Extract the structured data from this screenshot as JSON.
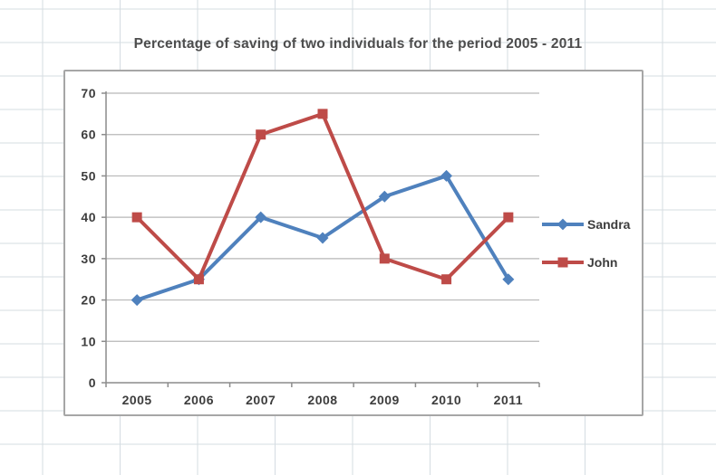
{
  "canvas": {
    "background_color": "#ffffff",
    "cell_grid_color": "#d5dce2",
    "chart_border_color": "#a6a6a6"
  },
  "chart_data": {
    "type": "line",
    "title": "Percentage of saving of two individuals for the period 2005 - 2011",
    "categories": [
      "2005",
      "2006",
      "2007",
      "2008",
      "2009",
      "2010",
      "2011"
    ],
    "series": [
      {
        "name": "Sandra",
        "marker": "diamond",
        "color": "#4F81BD",
        "values": [
          20,
          25,
          40,
          35,
          45,
          50,
          25
        ]
      },
      {
        "name": "John",
        "marker": "square",
        "color": "#BE4B48",
        "values": [
          40,
          25,
          60,
          65,
          30,
          25,
          40
        ]
      }
    ],
    "xlabel": "",
    "ylabel": "",
    "ylim": [
      0,
      70
    ],
    "yticks": [
      0,
      10,
      20,
      30,
      40,
      50,
      60,
      70
    ],
    "grid": true,
    "legend_position": "right",
    "style": {
      "gridline_color": "#b7b7b7",
      "axis_color": "#8c8c8c",
      "tick_label_color": "#3d3d3d",
      "line_width": 4
    }
  }
}
